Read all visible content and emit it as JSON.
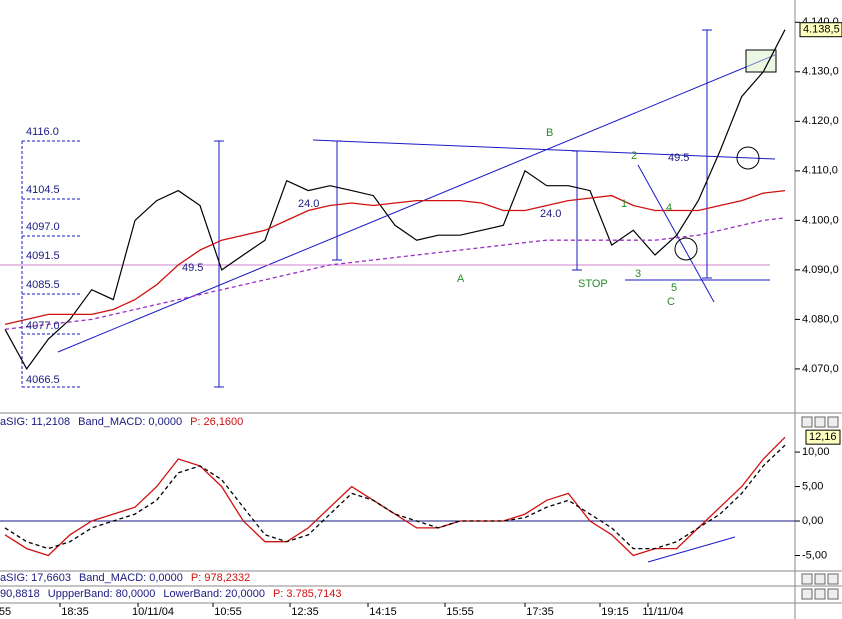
{
  "chart_data": [
    {
      "type": "line",
      "ylim": [
        4061.3,
        4144.5
      ],
      "yticks": [
        {
          "value": 4070,
          "label": "4.070,0"
        },
        {
          "value": 4080,
          "label": "4.080,0"
        },
        {
          "value": 4090,
          "label": "4.090,0"
        },
        {
          "value": 4100,
          "label": "4.100,0"
        },
        {
          "value": 4110,
          "label": "4.110,0"
        },
        {
          "value": 4120,
          "label": "4.120,0"
        },
        {
          "value": 4130,
          "label": "4.130,0"
        },
        {
          "value": 4140,
          "label": "4.140,0"
        }
      ],
      "current_label": "4.138,5",
      "series": [
        {
          "name": "Price",
          "color": "#000000",
          "values": [
            4078,
            4070,
            4076,
            4080,
            4086,
            4084,
            4100,
            4104,
            4106,
            4103,
            4090,
            4093,
            4096,
            4108,
            4106,
            4107,
            4106,
            4105,
            4099,
            4096,
            4097,
            4097,
            4098,
            4099,
            4110,
            4107,
            4107,
            4106,
            4095,
            4098,
            4093,
            4097,
            4104,
            4114,
            4125,
            4130,
            4138.5
          ]
        },
        {
          "name": "MA",
          "color": "#d01010",
          "values": [
            4079,
            4080,
            4081,
            4081,
            4081,
            4082,
            4084,
            4087,
            4091,
            4094,
            4096,
            4097,
            4098,
            4100,
            4102,
            4103,
            4103.5,
            4103,
            4103.5,
            4104,
            4104,
            4104,
            4103.5,
            4102,
            4102,
            4103,
            4104,
            4104.5,
            4105,
            4103,
            4102,
            4102,
            4102,
            4103,
            4104,
            4105.5,
            4106
          ]
        },
        {
          "name": "MA2",
          "color": "#9a30c8",
          "dashed": true,
          "values": [
            4078,
            4078.5,
            4079,
            4079.5,
            4080,
            4081,
            4082,
            4083,
            4084,
            4085,
            4086,
            4087,
            4088,
            4089,
            4090,
            4091,
            4091.5,
            4092,
            4092.5,
            4093,
            4093.5,
            4094,
            4094.5,
            4095,
            4095.5,
            4096,
            4096,
            4096,
            4096,
            4096,
            4096,
            4096.5,
            4097,
            4098,
            4099,
            4100,
            4100.5
          ]
        }
      ],
      "annotations": [
        "4116.0",
        "4104.5",
        "4097.0",
        "4091.5",
        "4085.5",
        "4077.0",
        "4066.5",
        "49.5",
        "24.0",
        "24.0",
        "49.5",
        "A",
        "B",
        "2",
        "1",
        "4",
        "3",
        "5",
        "C",
        "STOP"
      ]
    },
    {
      "type": "line",
      "header": [
        {
          "text": "aSIG: 11,2108",
          "color": "#1a1a80"
        },
        {
          "text": "Band_MACD: 0,0000",
          "color": "#1a1a80"
        },
        {
          "text": "P: 26,1600",
          "color": "#d01010"
        }
      ],
      "ylim": [
        -7.1,
        13.2
      ],
      "yticks": [
        {
          "value": -5,
          "label": "-5,00"
        },
        {
          "value": 0,
          "label": "0,00"
        },
        {
          "value": 5,
          "label": "5,00"
        },
        {
          "value": 10,
          "label": "10,00"
        }
      ],
      "current_label": "12,16",
      "series": [
        {
          "name": "MACD",
          "color": "#d01010",
          "values": [
            -2,
            -4,
            -5,
            -2,
            0,
            1,
            2,
            5,
            9,
            8,
            5,
            0,
            -3,
            -3,
            -1,
            2,
            5,
            3,
            1,
            -1,
            -1,
            0,
            0,
            0,
            1,
            3,
            4,
            0,
            -2,
            -5,
            -4,
            -4,
            -1,
            2,
            5,
            9,
            12.16
          ]
        },
        {
          "name": "Signal",
          "color": "#000000",
          "dashed": true,
          "values": [
            -1,
            -3,
            -4,
            -3,
            -1,
            0,
            1,
            3,
            7,
            8,
            6,
            2,
            -2,
            -3,
            -2,
            1,
            4,
            3,
            1,
            0,
            -1,
            0,
            0,
            0,
            0.5,
            2,
            3,
            1,
            -1,
            -4,
            -4,
            -3,
            -1,
            1,
            4,
            8,
            11
          ]
        }
      ]
    }
  ],
  "panel3_header": [
    {
      "text": "aSIG: 17,6603",
      "color": "#1a1a80"
    },
    {
      "text": "Band_MACD: 0,0000",
      "color": "#1a1a80"
    },
    {
      "text": "P: 978,2332",
      "color": "#d01010"
    }
  ],
  "panel4_header": [
    {
      "text": "90,8818",
      "color": "#1a1a80"
    },
    {
      "text": "UppperBand: 80,0000",
      "color": "#1a1a80"
    },
    {
      "text": "LowerBand: 20,0000",
      "color": "#1a1a80"
    },
    {
      "text": "P: 3.785,7143",
      "color": "#d01010"
    }
  ],
  "time_labels": [
    "55",
    "18:35",
    "10/11/04",
    "10:55",
    "12:35",
    "14:15",
    "15:55",
    "17:35",
    "19:15",
    "11/11/04"
  ]
}
